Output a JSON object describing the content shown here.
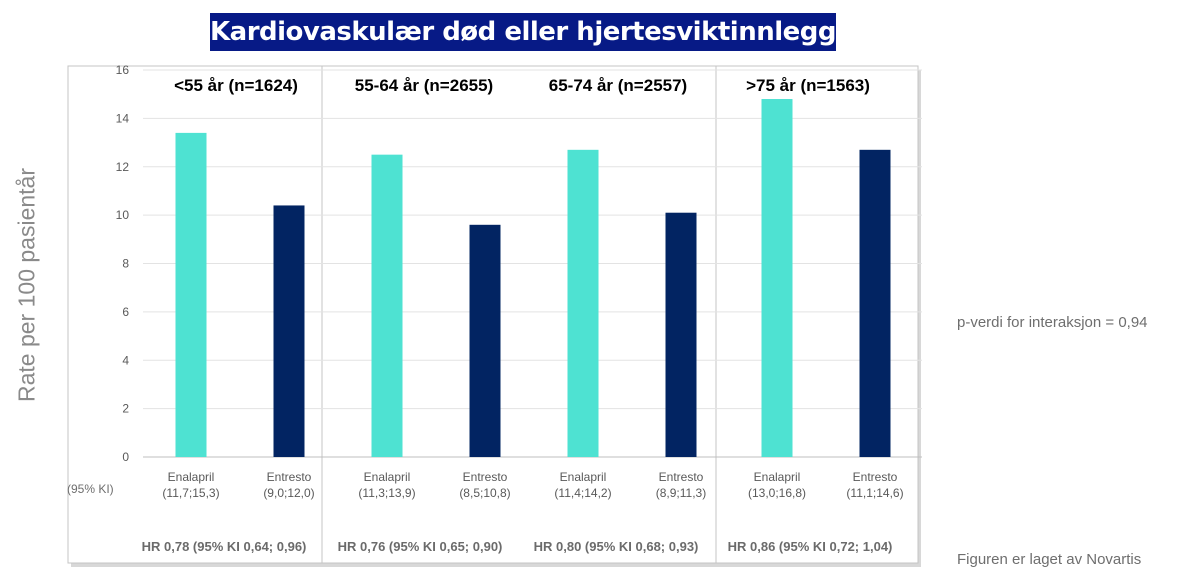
{
  "title": "Kardiovaskulær død eller hjertesviktinnleggelse",
  "side_note": "p-verdi for interaksjon = 0,94",
  "credit": "Figuren er laget av Novartis",
  "ci_axis_label": "(95% KI)",
  "colors": {
    "enalapril": "#4ee2d2",
    "entresto": "#022462",
    "title_bg": "#071a86"
  },
  "chart_data": {
    "type": "bar",
    "ylabel": "Rate per 100 pasientår",
    "ylim": [
      0,
      16
    ],
    "yticks": [
      0,
      2,
      4,
      6,
      8,
      10,
      12,
      14,
      16
    ],
    "grid": true,
    "groups": [
      {
        "label": "<55 år (n=1624)",
        "hr": "HR 0,78 (95% KI 0,64; 0,96)",
        "bars": [
          {
            "name": "Enalapril",
            "ci": "(11,7;15,3)",
            "value": 13.4
          },
          {
            "name": "Entresto",
            "ci": "(9,0;12,0)",
            "value": 10.4
          }
        ]
      },
      {
        "label": "55-64 år (n=2655)",
        "hr": "HR 0,76 (95% KI 0,65; 0,90)",
        "bars": [
          {
            "name": "Enalapril",
            "ci": "(11,3;13,9)",
            "value": 12.5
          },
          {
            "name": "Entresto",
            "ci": "(8,5;10,8)",
            "value": 9.6
          }
        ]
      },
      {
        "label": "65-74 år (n=2557)",
        "hr": "HR 0,80 (95% KI 0,68; 0,93)",
        "bars": [
          {
            "name": "Enalapril",
            "ci": "(11,4;14,2)",
            "value": 12.7
          },
          {
            "name": "Entresto",
            "ci": "(8,9;11,3)",
            "value": 10.1
          }
        ]
      },
      {
        "label": ">75 år (n=1563)",
        "hr": "HR 0,86 (95% KI 0,72; 1,04)",
        "bars": [
          {
            "name": "Enalapril",
            "ci": "(13,0;16,8)",
            "value": 14.8
          },
          {
            "name": "Entresto",
            "ci": "(11,1;14,6)",
            "value": 12.7
          }
        ]
      }
    ]
  }
}
